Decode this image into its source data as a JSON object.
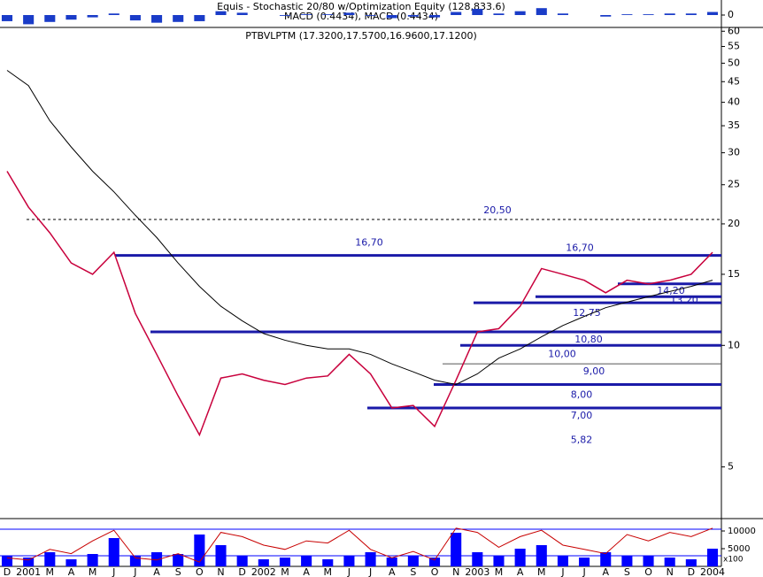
{
  "chart_data": [
    {
      "type": "bar",
      "title": "Equis - Stochastic 20/80 w/Optimization Equity (128,833.6)",
      "subtitle": "MACD (0.4434), MACD (0.4434)",
      "values": [
        -0.8,
        -1.2,
        -0.9,
        -0.6,
        -0.3,
        0.2,
        -0.7,
        -1,
        -0.9,
        -0.8,
        0.5,
        0.3,
        0,
        -0.1,
        0.1,
        0.1,
        0.3,
        -0.1,
        -0.4,
        -0.2,
        -0.3,
        0.4,
        0.8,
        0.2,
        0.5,
        0.9,
        0.2,
        0,
        -0.2,
        0.1,
        0.1,
        0.2,
        0.2,
        0.4
      ],
      "color": "#1a3cc8",
      "ylim": [
        -1.5,
        1.5
      ],
      "yticks": [
        0
      ]
    },
    {
      "type": "line",
      "title": "PTBVLPTM (17.3200,17.5700,16.9600,17.1200)",
      "categories": [
        "D",
        "2001",
        "M",
        "A",
        "M",
        "J",
        "J",
        "A",
        "S",
        "O",
        "N",
        "D",
        "2002",
        "M",
        "A",
        "M",
        "J",
        "J",
        "A",
        "S",
        "O",
        "N",
        "2003",
        "M",
        "A",
        "M",
        "J",
        "J",
        "A",
        "S",
        "O",
        "N",
        "D",
        "2004"
      ],
      "series": [
        {
          "color": "#c8003c",
          "values": [
            27,
            22,
            19,
            16,
            15,
            17,
            12,
            9.5,
            7.5,
            6,
            8.3,
            8.5,
            8.2,
            8,
            8.3,
            8.4,
            9.5,
            8.5,
            7,
            7.1,
            6.3,
            8.2,
            10.8,
            11,
            12.5,
            15.5,
            15,
            14.5,
            13.5,
            14.5,
            14.2,
            14.5,
            15,
            17
          ]
        },
        {
          "color": "#000000",
          "values": [
            48,
            44,
            36,
            31,
            27,
            24,
            21,
            18.5,
            16,
            14,
            12.5,
            11.5,
            10.7,
            10.3,
            10,
            9.8,
            9.8,
            9.5,
            9,
            8.6,
            8.2,
            8,
            8.5,
            9.3,
            9.8,
            10.5,
            11.2,
            11.8,
            12.4,
            12.8,
            13.2,
            13.6,
            14,
            14.5
          ]
        }
      ],
      "ylim": [
        3.8,
        61
      ],
      "yticks": [
        60,
        55,
        50,
        45,
        40,
        35,
        30,
        25,
        20,
        15,
        10,
        5
      ],
      "log_scale": true,
      "levels": [
        {
          "value": 20.5,
          "label": "20,50"
        },
        {
          "value": 16.7,
          "label": "16,70"
        },
        {
          "value": 16.7,
          "label": "16,70"
        },
        {
          "value": 14.2,
          "label": "14,20"
        },
        {
          "value": 13.2,
          "label": "13,20"
        },
        {
          "value": 12.75,
          "label": "12,75"
        },
        {
          "value": 10.8,
          "label": "10,80"
        },
        {
          "value": 10,
          "label": "10,00"
        },
        {
          "value": 9,
          "label": "9,00"
        },
        {
          "value": 8,
          "label": "8,00"
        },
        {
          "value": 7,
          "label": "7,00"
        },
        {
          "value": 5.82,
          "label": "5,82"
        }
      ]
    },
    {
      "type": "bar",
      "series": [
        {
          "color": "#0000ff",
          "values": [
            3000,
            2500,
            4000,
            2000,
            3500,
            8000,
            3000,
            4000,
            3500,
            9000,
            6000,
            3000,
            2000,
            2500,
            3000,
            2000,
            3000,
            4000,
            2500,
            3000,
            2500,
            9500,
            4000,
            3000,
            5000,
            6000,
            3000,
            2500,
            4000,
            3000,
            3000,
            2500,
            2000,
            5000
          ]
        },
        {
          "color": "#c80000",
          "axis": "y2",
          "values": [
            20,
            15,
            40,
            30,
            60,
            85,
            20,
            15,
            30,
            10,
            80,
            70,
            50,
            40,
            60,
            55,
            85,
            40,
            20,
            35,
            15,
            90,
            80,
            45,
            70,
            85,
            50,
            40,
            30,
            75,
            60,
            80,
            70,
            90
          ]
        }
      ],
      "ylim": [
        0,
        12000
      ],
      "yticks": [
        10000,
        5000
      ],
      "y2lim": [
        0,
        100
      ],
      "scale_label": "x100"
    }
  ]
}
